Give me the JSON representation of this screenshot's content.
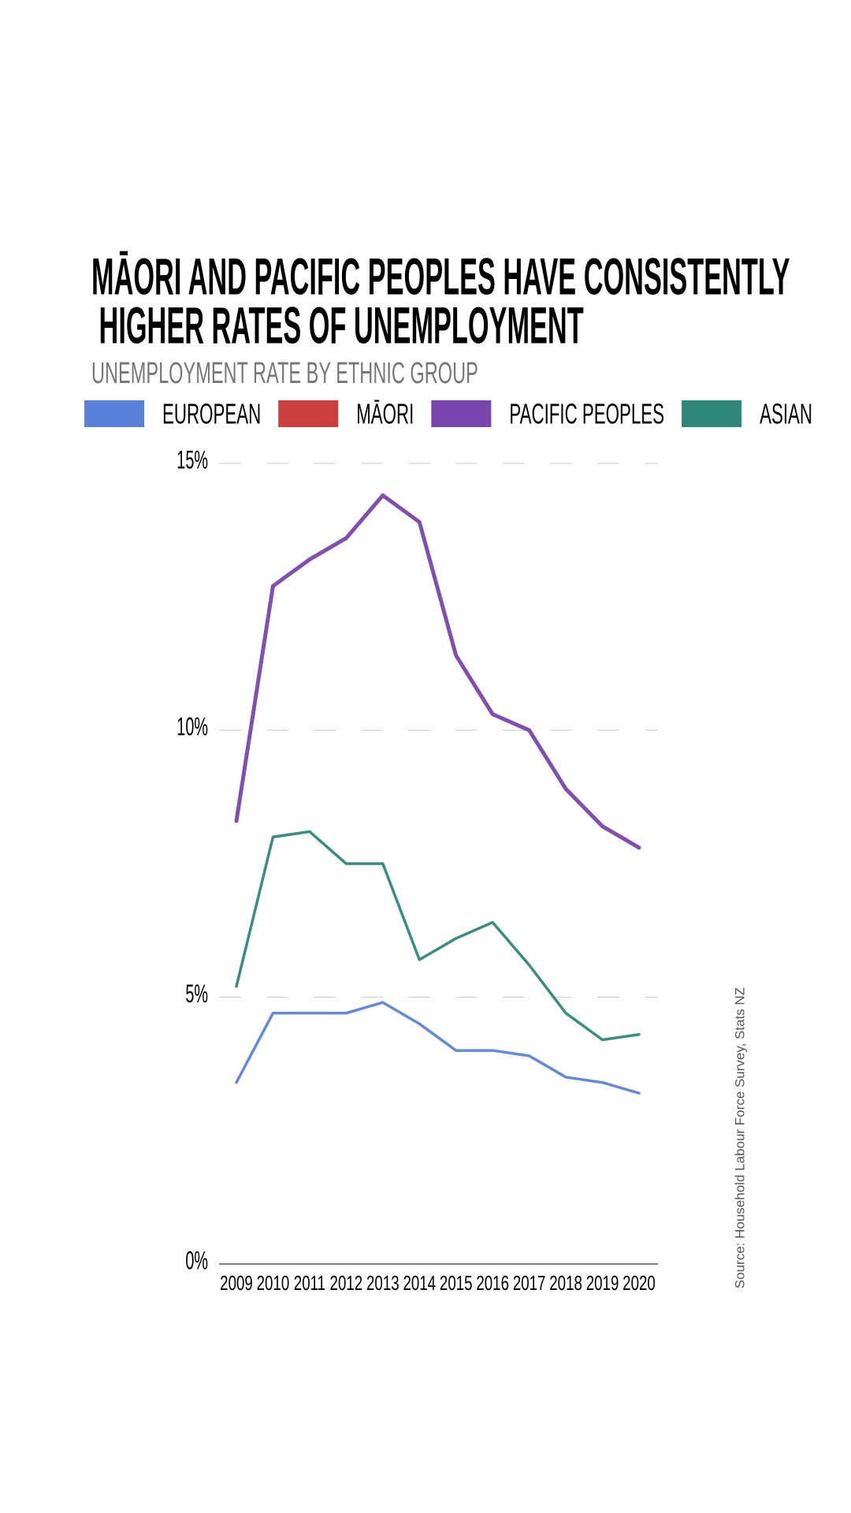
{
  "chart_data": {
    "type": "line",
    "title": "MĀORI AND PACIFIC PEOPLES HAVE CONSISTENTLY HIGHER RATES OF UNEMPLOYMENT",
    "subtitle": "UNEMPLOYMENT RATE BY ETHNIC GROUP",
    "source": "Source: Household Labour Force Survey, Stats NZ",
    "categories": [
      "2009",
      "2010",
      "2011",
      "2012",
      "2013",
      "2014",
      "2015",
      "2016",
      "2017",
      "2018",
      "2019",
      "2020"
    ],
    "series": [
      {
        "name": "EUROPEAN",
        "color": "#4674d6",
        "values": [
          3.4,
          4.7,
          4.7,
          4.7,
          4.9,
          4.5,
          4.0,
          4.0,
          3.9,
          3.5,
          3.4,
          3.2
        ]
      },
      {
        "name": "MĀORI",
        "color": "#c62a2a",
        "values": [
          null,
          null,
          null,
          null,
          null,
          null,
          null,
          null,
          null,
          null,
          null,
          null
        ]
      },
      {
        "name": "PACIFIC PEOPLES",
        "color": "#6a30a2",
        "values": [
          8.3,
          12.7,
          13.2,
          13.6,
          14.4,
          13.9,
          11.4,
          10.3,
          10.0,
          8.9,
          8.2,
          7.8
        ]
      },
      {
        "name": "ASIAN",
        "color": "#177a69",
        "values": [
          5.2,
          8.0,
          8.1,
          7.5,
          7.5,
          5.7,
          6.1,
          6.4,
          5.6,
          4.7,
          4.2,
          4.3
        ]
      }
    ],
    "ylim": [
      0,
      15
    ],
    "yticks": [
      {
        "value": 0,
        "label": "0%"
      },
      {
        "value": 5,
        "label": "5%"
      },
      {
        "value": 10,
        "label": "10%"
      },
      {
        "value": 15,
        "label": "15%"
      }
    ],
    "grid": true
  }
}
